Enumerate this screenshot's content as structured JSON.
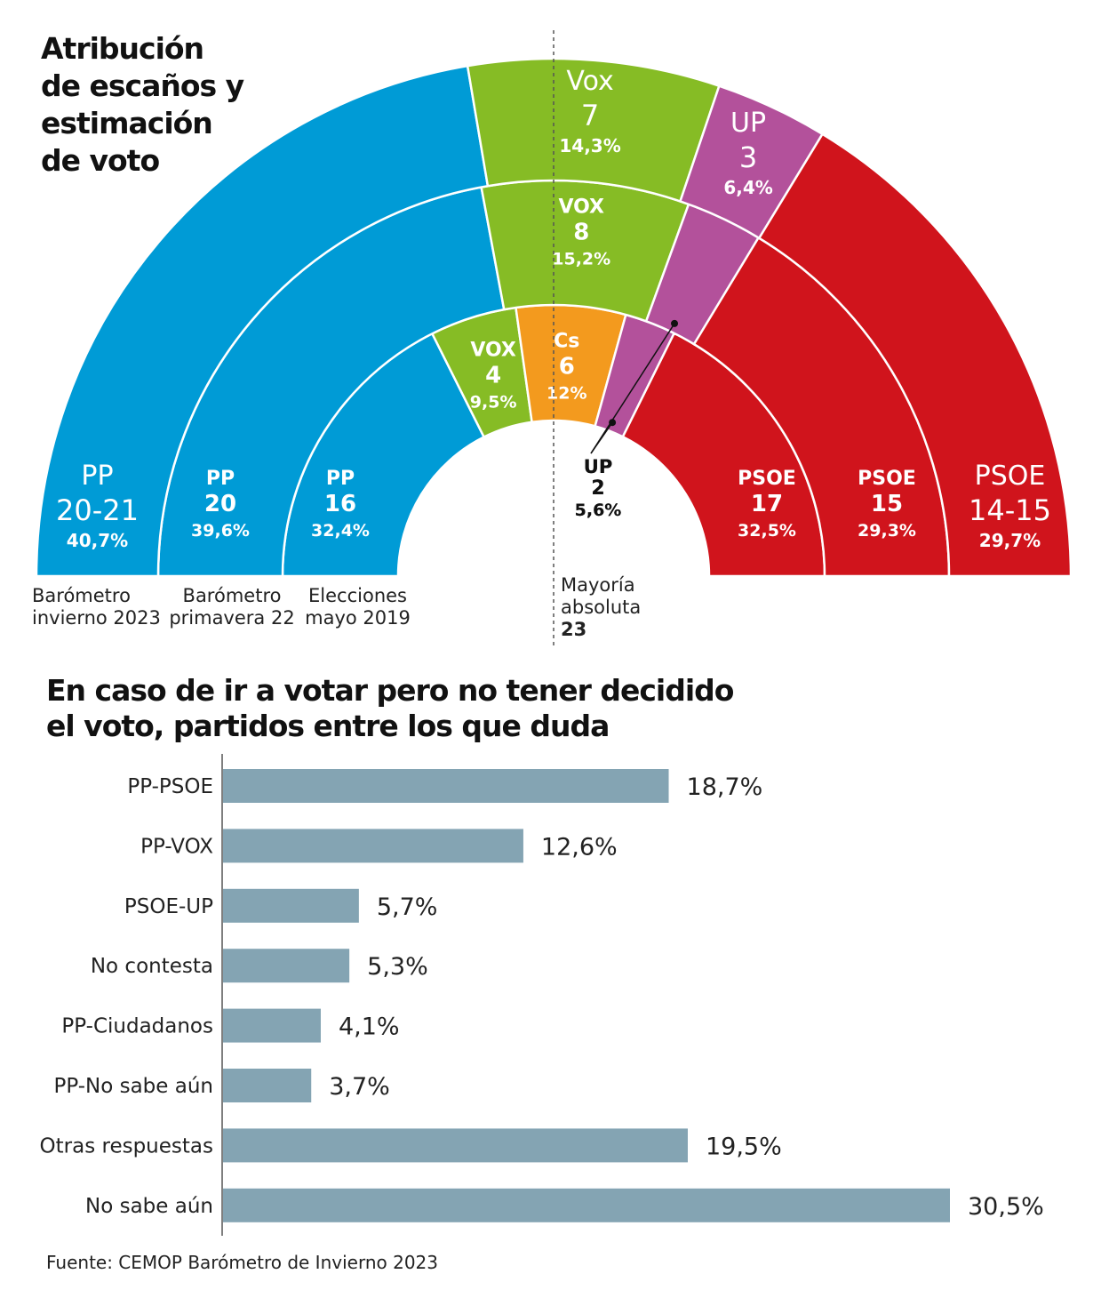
{
  "hemicycle": {
    "title_lines": [
      "Atribución",
      "de escaños y",
      "estimación",
      "de voto"
    ],
    "rings": [
      {
        "name": "Elecciones mayo 2019",
        "label_lines": [
          "Elecciones",
          "mayo 2019"
        ],
        "segments": [
          {
            "party": "PP",
            "seats": "16",
            "pct": "32,4%",
            "share": 32.4,
            "color": "#009bd6"
          },
          {
            "party": "VOX",
            "seats": "4",
            "pct": "9,5%",
            "share": 9.5,
            "color": "#86bc25"
          },
          {
            "party": "Cs",
            "seats": "6",
            "pct": "12%",
            "share": 12.0,
            "color": "#f39a1e"
          },
          {
            "party": "UP",
            "seats": "2",
            "pct": "5,6%",
            "share": 5.6,
            "color": "#b3519b"
          },
          {
            "party": "PSOE",
            "seats": "17",
            "pct": "32,5%",
            "share": 32.5,
            "color": "#d0141c"
          }
        ]
      },
      {
        "name": "Barómetro primavera 22",
        "label_lines": [
          "Barómetro",
          "primavera 22"
        ],
        "segments": [
          {
            "party": "PP",
            "seats": "20",
            "pct": "39,6%",
            "share": 39.6,
            "color": "#009bd6"
          },
          {
            "party": "VOX",
            "seats": "8",
            "pct": "15,2%",
            "share": 15.2,
            "color": "#86bc25"
          },
          {
            "party": "UP",
            "seats": "2",
            "pct": "5,6%",
            "share": 5.6,
            "color": "#b3519b"
          },
          {
            "party": "PSOE",
            "seats": "15",
            "pct": "29,3%",
            "share": 29.3,
            "color": "#d0141c"
          }
        ]
      },
      {
        "name": "Barómetro invierno 2023",
        "label_lines": [
          "Barómetro",
          "invierno 2023"
        ],
        "segments": [
          {
            "party": "PP",
            "seats": "20-21",
            "pct": "40,7%",
            "share": 40.7,
            "color": "#009bd6"
          },
          {
            "party": "Vox",
            "seats": "7",
            "pct": "14,3%",
            "share": 14.3,
            "color": "#86bc25"
          },
          {
            "party": "UP",
            "seats": "3",
            "pct": "6,4%",
            "share": 6.4,
            "color": "#b3519b"
          },
          {
            "party": "PSOE",
            "seats": "14-15",
            "pct": "29,7%",
            "share": 29.7,
            "color": "#d0141c"
          }
        ]
      }
    ],
    "majority": {
      "lines": [
        "Mayoría",
        "absoluta"
      ],
      "value": "23"
    }
  },
  "chart_data": {
    "type": "bar",
    "title_lines": [
      "En caso de ir a votar pero no tener decidido",
      "el voto, partidos entre los que duda"
    ],
    "categories": [
      "PP-PSOE",
      "PP-VOX",
      "PSOE-UP",
      "No contesta",
      "PP-Ciudadanos",
      "PP-No sabe aún",
      "Otras respuestas",
      "No sabe aún"
    ],
    "values": [
      18.7,
      12.6,
      5.7,
      5.3,
      4.1,
      3.7,
      19.5,
      30.5
    ],
    "value_labels": [
      "18,7%",
      "12,6%",
      "5,7%",
      "5,3%",
      "4,1%",
      "3,7%",
      "19,5%",
      "30,5%"
    ],
    "orientation": "horizontal",
    "bar_color": "#84a4b3",
    "xlim": [
      0,
      31
    ]
  },
  "source": "Fuente: CEMOP Barómetro de Invierno 2023"
}
